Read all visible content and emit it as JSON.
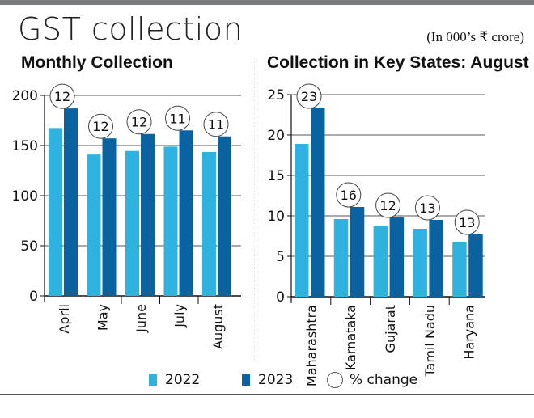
{
  "title": "GST collection",
  "units": "(In 000’s ₹ crore)",
  "colors": {
    "2022": "#30b2e0",
    "2023": "#0b62a1"
  },
  "legend": {
    "s2022": "2022",
    "s2023": "2023",
    "pct": "% change"
  },
  "chart_data": [
    {
      "type": "bar",
      "title": "Monthly Collection",
      "categories": [
        "April",
        "May",
        "June",
        "July",
        "August"
      ],
      "series": [
        {
          "name": "2022",
          "values": [
            167.5,
            141,
            144.6,
            148.9,
            143.6
          ]
        },
        {
          "name": "2023",
          "values": [
            187,
            157.1,
            161.5,
            165.1,
            159.1
          ]
        }
      ],
      "pct_change": [
        "12",
        "12",
        "12",
        "11",
        "11"
      ],
      "ylim": [
        0,
        200
      ],
      "yticks": [
        "0",
        "50",
        "100",
        "150",
        "200"
      ]
    },
    {
      "type": "bar",
      "title": "Collection in Key States: August",
      "categories": [
        "Maharashtra",
        "Karnataka",
        "Gujarat",
        "Tamil Nadu",
        "Haryana"
      ],
      "series": [
        {
          "name": "2022",
          "values": [
            18.9,
            9.6,
            8.7,
            8.4,
            6.8
          ]
        },
        {
          "name": "2023",
          "values": [
            23.3,
            11.1,
            9.8,
            9.5,
            7.7
          ]
        }
      ],
      "pct_change": [
        "23",
        "16",
        "12",
        "13",
        "13"
      ],
      "ylim": [
        0,
        25
      ],
      "yticks": [
        "0",
        "5",
        "10",
        "15",
        "20",
        "25"
      ]
    }
  ]
}
